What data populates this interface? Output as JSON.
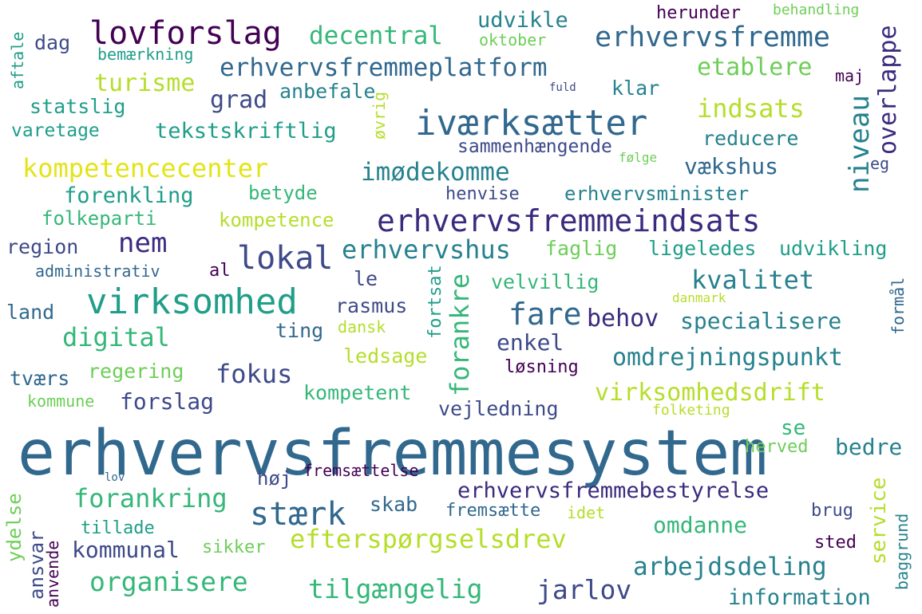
{
  "palette": {
    "purple": "#440154",
    "indigo": "#3b2a7e",
    "slate": "#3e4a89",
    "blue": "#31688e",
    "teal": "#26828e",
    "cyan": "#1f9e89",
    "green": "#35b779",
    "lime": "#6ece58",
    "yellowgreen": "#b5de2b",
    "yellow": "#e3e418"
  },
  "words": [
    {
      "text": "erhvervsfremmesystem",
      "color": "#31688e"
    },
    {
      "text": "erhvervsfremmeindsats",
      "color": "#3b2a7e"
    },
    {
      "text": "virksomhed",
      "color": "#1f9e89"
    },
    {
      "text": "iværksætter",
      "color": "#31688e"
    },
    {
      "text": "lovforslag",
      "color": "#440154"
    },
    {
      "text": "erhvervsfremme",
      "color": "#31688e"
    },
    {
      "text": "erhvervsfremmeplatform",
      "color": "#31688e"
    },
    {
      "text": "lokal",
      "color": "#3e4a89"
    },
    {
      "text": "stærk",
      "color": "#31688e"
    },
    {
      "text": "efterspørgselsdrev",
      "color": "#b5de2b"
    },
    {
      "text": "kompetencecenter",
      "color": "#e3e418"
    },
    {
      "text": "erhvervsfremmebestyrelse",
      "color": "#3b2a7e"
    },
    {
      "text": "omdrejningspunkt",
      "color": "#26828e"
    },
    {
      "text": "organisere",
      "color": "#35b779"
    },
    {
      "text": "tilgængelig",
      "color": "#35b779"
    },
    {
      "text": "fare",
      "color": "#31688e"
    },
    {
      "text": "kvalitet",
      "color": "#26828e"
    },
    {
      "text": "erhvervshus",
      "color": "#26828e"
    },
    {
      "text": "imødekomme",
      "color": "#26828e"
    },
    {
      "text": "decentral",
      "color": "#35b779"
    },
    {
      "text": "niveau",
      "color": "#26828e"
    },
    {
      "text": "overlappe",
      "color": "#3b2a7e"
    },
    {
      "text": "virksomhedsdrift",
      "color": "#b5de2b"
    },
    {
      "text": "arbejdsdeling",
      "color": "#26828e"
    },
    {
      "text": "forankring",
      "color": "#35b779"
    },
    {
      "text": "fokus",
      "color": "#3e4a89"
    },
    {
      "text": "nem",
      "color": "#3b2a7e"
    },
    {
      "text": "digital",
      "color": "#35b779"
    },
    {
      "text": "specialisere",
      "color": "#26828e"
    },
    {
      "text": "jarlov",
      "color": "#3e4a89"
    },
    {
      "text": "forankre",
      "color": "#35b779"
    },
    {
      "text": "indsats",
      "color": "#b5de2b"
    },
    {
      "text": "turisme",
      "color": "#b5de2b"
    },
    {
      "text": "etablere",
      "color": "#6ece58"
    },
    {
      "text": "grad",
      "color": "#3e4a89"
    },
    {
      "text": "behov",
      "color": "#3b2a7e"
    },
    {
      "text": "information",
      "color": "#26828e"
    },
    {
      "text": "omdanne",
      "color": "#35b779"
    },
    {
      "text": "kommunal",
      "color": "#3e4a89"
    },
    {
      "text": "enkel",
      "color": "#3e4a89"
    },
    {
      "text": "vækshus",
      "color": "#31688e"
    },
    {
      "text": "udvikle",
      "color": "#26828e"
    },
    {
      "text": "tekstskriftlig",
      "color": "#1f9e89"
    },
    {
      "text": "forenkling",
      "color": "#1f9e89"
    },
    {
      "text": "dag",
      "color": "#3e4a89"
    },
    {
      "text": "anbefale",
      "color": "#26828e"
    },
    {
      "text": "klar",
      "color": "#26828e"
    },
    {
      "text": "statslig",
      "color": "#1f9e89"
    },
    {
      "text": "reducere",
      "color": "#26828e"
    },
    {
      "text": "varetage",
      "color": "#1f9e89"
    },
    {
      "text": "sammenhængende",
      "color": "#3e4a89"
    },
    {
      "text": "betyde",
      "color": "#35b779"
    },
    {
      "text": "henvise",
      "color": "#3e4a89"
    },
    {
      "text": "erhvervsminister",
      "color": "#26828e"
    },
    {
      "text": "folkeparti",
      "color": "#35b779"
    },
    {
      "text": "kompetence",
      "color": "#b5de2b"
    },
    {
      "text": "region",
      "color": "#3e4a89"
    },
    {
      "text": "faglig",
      "color": "#6ece58"
    },
    {
      "text": "ligeledes",
      "color": "#1f9e89"
    },
    {
      "text": "udvikling",
      "color": "#1f9e89"
    },
    {
      "text": "administrativ",
      "color": "#31688e"
    },
    {
      "text": "al",
      "color": "#440154"
    },
    {
      "text": "le",
      "color": "#3e4a89"
    },
    {
      "text": "velvillig",
      "color": "#35b779"
    },
    {
      "text": "land",
      "color": "#31688e"
    },
    {
      "text": "rasmus",
      "color": "#3e4a89"
    },
    {
      "text": "ting",
      "color": "#31688e"
    },
    {
      "text": "dansk",
      "color": "#b5de2b"
    },
    {
      "text": "danmark",
      "color": "#b5de2b"
    },
    {
      "text": "regering",
      "color": "#6ece58"
    },
    {
      "text": "ledsage",
      "color": "#b5de2b"
    },
    {
      "text": "løsning",
      "color": "#440154"
    },
    {
      "text": "tværs",
      "color": "#31688e"
    },
    {
      "text": "kompetent",
      "color": "#35b779"
    },
    {
      "text": "kommune",
      "color": "#6ece58"
    },
    {
      "text": "forslag",
      "color": "#3e4a89"
    },
    {
      "text": "vejledning",
      "color": "#3e4a89"
    },
    {
      "text": "folketing",
      "color": "#b5de2b"
    },
    {
      "text": "se",
      "color": "#35b779"
    },
    {
      "text": "bedre",
      "color": "#26828e"
    },
    {
      "text": "herved",
      "color": "#6ece58"
    },
    {
      "text": "høj",
      "color": "#3e4a89"
    },
    {
      "text": "fremsættelse",
      "color": "#440154"
    },
    {
      "text": "lov",
      "color": "#31688e"
    },
    {
      "text": "skab",
      "color": "#31688e"
    },
    {
      "text": "fremsætte",
      "color": "#31688e"
    },
    {
      "text": "idet",
      "color": "#b5de2b"
    },
    {
      "text": "brug",
      "color": "#3e4a89"
    },
    {
      "text": "tillade",
      "color": "#1f9e89"
    },
    {
      "text": "sikker",
      "color": "#6ece58"
    },
    {
      "text": "sted",
      "color": "#440154"
    },
    {
      "text": "herunder",
      "color": "#440154"
    },
    {
      "text": "behandling",
      "color": "#6ece58"
    },
    {
      "text": "oktober",
      "color": "#6ece58"
    },
    {
      "text": "bemærkning",
      "color": "#1f9e89"
    },
    {
      "text": "maj",
      "color": "#440154"
    },
    {
      "text": "fuld",
      "color": "#3e4a89"
    },
    {
      "text": "følge",
      "color": "#6ece58"
    },
    {
      "text": "aftale",
      "color": "#1f9e89"
    },
    {
      "text": "øvrig",
      "color": "#b5de2b"
    },
    {
      "text": "eg",
      "color": "#3e4a89"
    },
    {
      "text": "fortsat",
      "color": "#1f9e89"
    },
    {
      "text": "formål",
      "color": "#31688e"
    },
    {
      "text": "ydelse",
      "color": "#6ece58"
    },
    {
      "text": "ansvar",
      "color": "#3e4a89"
    },
    {
      "text": "anvende",
      "color": "#440154"
    },
    {
      "text": "service",
      "color": "#b5de2b"
    },
    {
      "text": "baggrund",
      "color": "#26828e"
    }
  ]
}
